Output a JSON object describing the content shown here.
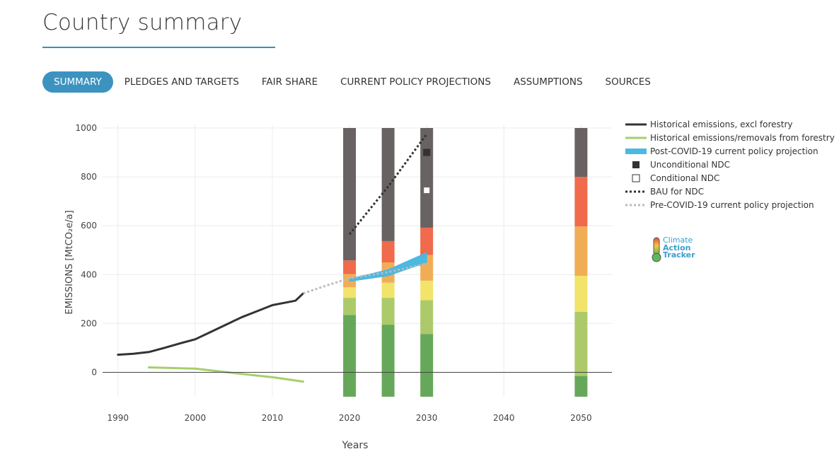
{
  "page": {
    "title": "Country summary"
  },
  "tabs": [
    {
      "label": "SUMMARY",
      "active": true
    },
    {
      "label": "PLEDGES AND TARGETS",
      "active": false
    },
    {
      "label": "FAIR SHARE",
      "active": false
    },
    {
      "label": "CURRENT POLICY PROJECTIONS",
      "active": false
    },
    {
      "label": "ASSUMPTIONS",
      "active": false
    },
    {
      "label": "SOURCES",
      "active": false
    }
  ],
  "logo": {
    "line1": "Climate",
    "line2": "Action",
    "line3": "Tracker",
    "icon": "thermometer-icon"
  },
  "chart_data": {
    "type": "line",
    "xlabel": "Years",
    "ylabel": "EMISSIONS [MtCO₂e/a]",
    "xlim": [
      1988,
      2054
    ],
    "ylim": [
      -100,
      1000
    ],
    "x_ticks": [
      1990,
      2000,
      2010,
      2020,
      2030,
      2040,
      2050
    ],
    "y_ticks": [
      0,
      200,
      400,
      600,
      800,
      1000
    ],
    "grid": true,
    "legend_position": "right",
    "series": [
      {
        "name": "Historical emissions, excl forestry",
        "style": "solid",
        "color": "#333333",
        "x": [
          1990,
          1992,
          1994,
          1996,
          1998,
          2000,
          2002,
          2004,
          2006,
          2008,
          2010,
          2012,
          2013,
          2014
        ],
        "y": [
          72,
          76,
          83,
          100,
          118,
          135,
          165,
          195,
          225,
          250,
          275,
          287,
          293,
          323
        ]
      },
      {
        "name": "Historical emissions/removals from forestry",
        "style": "solid",
        "color": "#a6cf6b",
        "x": [
          1994,
          2000,
          2005,
          2010,
          2014
        ],
        "y": [
          20,
          15,
          -3,
          -20,
          -38
        ]
      },
      {
        "name": "Post-COVID-19 current policy projection",
        "style": "band",
        "color": "#4db8e0",
        "x": [
          2020,
          2025,
          2030
        ],
        "upper": [
          382,
          420,
          490
        ],
        "lower": [
          372,
          395,
          450
        ]
      },
      {
        "name": "Unconditional NDC",
        "style": "marker-filled",
        "color": "#333333",
        "x": [
          2030
        ],
        "y": [
          900
        ]
      },
      {
        "name": "Conditional NDC",
        "style": "marker-open",
        "color": "#ffffff",
        "x": [
          2030
        ],
        "y": [
          745
        ]
      },
      {
        "name": "BAU for NDC",
        "style": "dotted",
        "color": "#333333",
        "x": [
          2020,
          2025,
          2030
        ],
        "y": [
          565,
          760,
          975
        ]
      },
      {
        "name": "Pre-COVID-19 current policy projection",
        "style": "dotted",
        "color": "#bbbbbb",
        "x": [
          2014,
          2017,
          2020,
          2025,
          2030
        ],
        "y": [
          323,
          355,
          385,
          410,
          445
        ]
      }
    ],
    "rating_bars": {
      "colors": [
        "#66a85a",
        "#acca6a",
        "#f2e36a",
        "#f1ad55",
        "#f06a4c",
        "#686262"
      ],
      "bars": [
        {
          "x": 2020,
          "bounds": [
            -100,
            235,
            305,
            348,
            402,
            458,
            1000
          ]
        },
        {
          "x": 2025,
          "bounds": [
            -100,
            195,
            305,
            367,
            450,
            537,
            1000
          ]
        },
        {
          "x": 2030,
          "bounds": [
            -100,
            157,
            295,
            375,
            480,
            592,
            1000
          ]
        },
        {
          "x": 2050,
          "bounds": [
            -100,
            -15,
            248,
            395,
            597,
            800,
            1000
          ]
        }
      ]
    }
  }
}
